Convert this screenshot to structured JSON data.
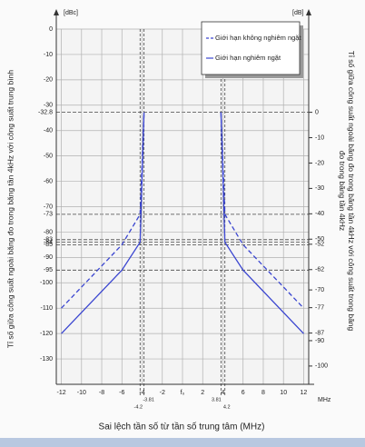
{
  "chart_data": {
    "type": "line",
    "y_unit": "[dBc]",
    "y2_unit": "[dB]",
    "x_unit": "MHz",
    "xlabel": "Sai lệch tần số từ tần số trung tâm (MHz)",
    "ylabel": "Tỉ số giữa công suất ngoài băng đo trong băng tần 4kHz với công suất trung bình",
    "y2label": [
      "Tỉ số giữa công suất ngoài băng đo trong băng tần 4kHz với công suất trong băng",
      "đo trong băng tần 4kHz"
    ],
    "x": [
      -12,
      -6,
      -4.2,
      -3.81,
      null,
      3.81,
      4.2,
      6,
      12
    ],
    "series": [
      {
        "name": "Giới hạn không nghiêm ngặt",
        "color": "#3a45d0",
        "dash": true,
        "values": [
          -110,
          -85,
          -73,
          -32.8,
          null,
          -32.8,
          -73,
          -85,
          -110
        ]
      },
      {
        "name": "Giới hạn nghiêm ngặt",
        "color": "#3a45d0",
        "dash": false,
        "values": [
          -120,
          -95,
          -84,
          -32.8,
          null,
          -32.8,
          -84,
          -95,
          -120
        ]
      }
    ],
    "xlim": [
      -12.5,
      12.5
    ],
    "xticks": [
      -12,
      -10,
      -8,
      -6,
      {
        "value": -4.2,
        "label": "-4.2"
      },
      -4,
      {
        "value": -3.81,
        "label": "-3.81"
      },
      -2,
      {
        "value": 0,
        "label": "f₀"
      },
      2,
      {
        "value": 3.81,
        "label": "3.81"
      },
      4,
      {
        "value": 4.2,
        "label": "4.2"
      },
      6,
      8,
      10,
      12
    ],
    "ylim": [
      -140,
      0
    ],
    "yticks": [
      0,
      -10,
      -20,
      -30,
      -32.8,
      -40,
      -50,
      -60,
      -70,
      -73,
      -80,
      -83,
      -84,
      -85,
      -90,
      -95,
      -100,
      -110,
      -120,
      -130
    ],
    "y2lim": [
      -107.2,
      32.8
    ],
    "y2ticks": [
      0,
      -10,
      -20,
      -30,
      -40,
      -50,
      -52,
      -62,
      -70,
      -77,
      -87,
      -90,
      -100
    ],
    "grid": true
  }
}
